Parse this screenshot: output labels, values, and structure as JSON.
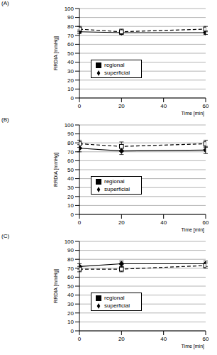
{
  "chart_data": [
    {
      "type": "line",
      "title": "(A)",
      "x_label": "Time [min]",
      "y_label": "RRDIA [mmHg]",
      "x": [
        0,
        20,
        60
      ],
      "xlim": [
        0,
        60
      ],
      "xticks": [
        0,
        20,
        40,
        60
      ],
      "ylim": [
        0,
        100
      ],
      "yticks": [
        0,
        10,
        20,
        30,
        40,
        50,
        60,
        70,
        80,
        90,
        100
      ],
      "grid": true,
      "legend": "lower center",
      "series": [
        {
          "name": "superficial",
          "color": "#000000",
          "marker": "diamond",
          "line_style": "solid",
          "values": [
            74,
            73,
            73
          ],
          "errors": [
            2,
            2,
            2
          ]
        },
        {
          "name": "regional",
          "color": "#000000",
          "marker": "square",
          "line_style": "dashed",
          "values": [
            77,
            74,
            77
          ],
          "errors": [
            3,
            3,
            3
          ]
        }
      ]
    },
    {
      "type": "line",
      "title": "(B)",
      "x_label": "Time [min]",
      "y_label": "RRDIA [mmHg]",
      "x": [
        0,
        20,
        60
      ],
      "xlim": [
        0,
        60
      ],
      "xticks": [
        0,
        20,
        40,
        60
      ],
      "ylim": [
        0,
        100
      ],
      "yticks": [
        0,
        10,
        20,
        30,
        40,
        50,
        60,
        70,
        80,
        90,
        100
      ],
      "grid": true,
      "legend": "lower center",
      "series": [
        {
          "name": "superficial",
          "color": "#000000",
          "marker": "diamond",
          "line_style": "solid",
          "values": [
            74,
            71,
            72
          ],
          "errors": [
            4,
            4,
            4
          ]
        },
        {
          "name": "regional",
          "color": "#000000",
          "marker": "square",
          "line_style": "dashed",
          "values": [
            79,
            76,
            79
          ],
          "errors": [
            4,
            5,
            4
          ]
        }
      ]
    },
    {
      "type": "line",
      "title": "(C)",
      "x_label": "Time [min]",
      "y_label": "RRDIA [mmHg]",
      "x": [
        0,
        20,
        60
      ],
      "xlim": [
        0,
        60
      ],
      "xticks": [
        0,
        20,
        40,
        60
      ],
      "ylim": [
        0,
        100
      ],
      "yticks": [
        0,
        10,
        20,
        30,
        40,
        50,
        60,
        70,
        80,
        90,
        100
      ],
      "grid": true,
      "legend": "lower center",
      "series": [
        {
          "name": "superficial",
          "color": "#000000",
          "marker": "diamond",
          "line_style": "solid",
          "values": [
            72,
            75,
            75
          ],
          "errors": [
            3,
            3,
            3
          ]
        },
        {
          "name": "regional",
          "color": "#000000",
          "marker": "square",
          "line_style": "dashed",
          "values": [
            69,
            69,
            73
          ],
          "errors": [
            3,
            3,
            3
          ]
        }
      ]
    }
  ]
}
